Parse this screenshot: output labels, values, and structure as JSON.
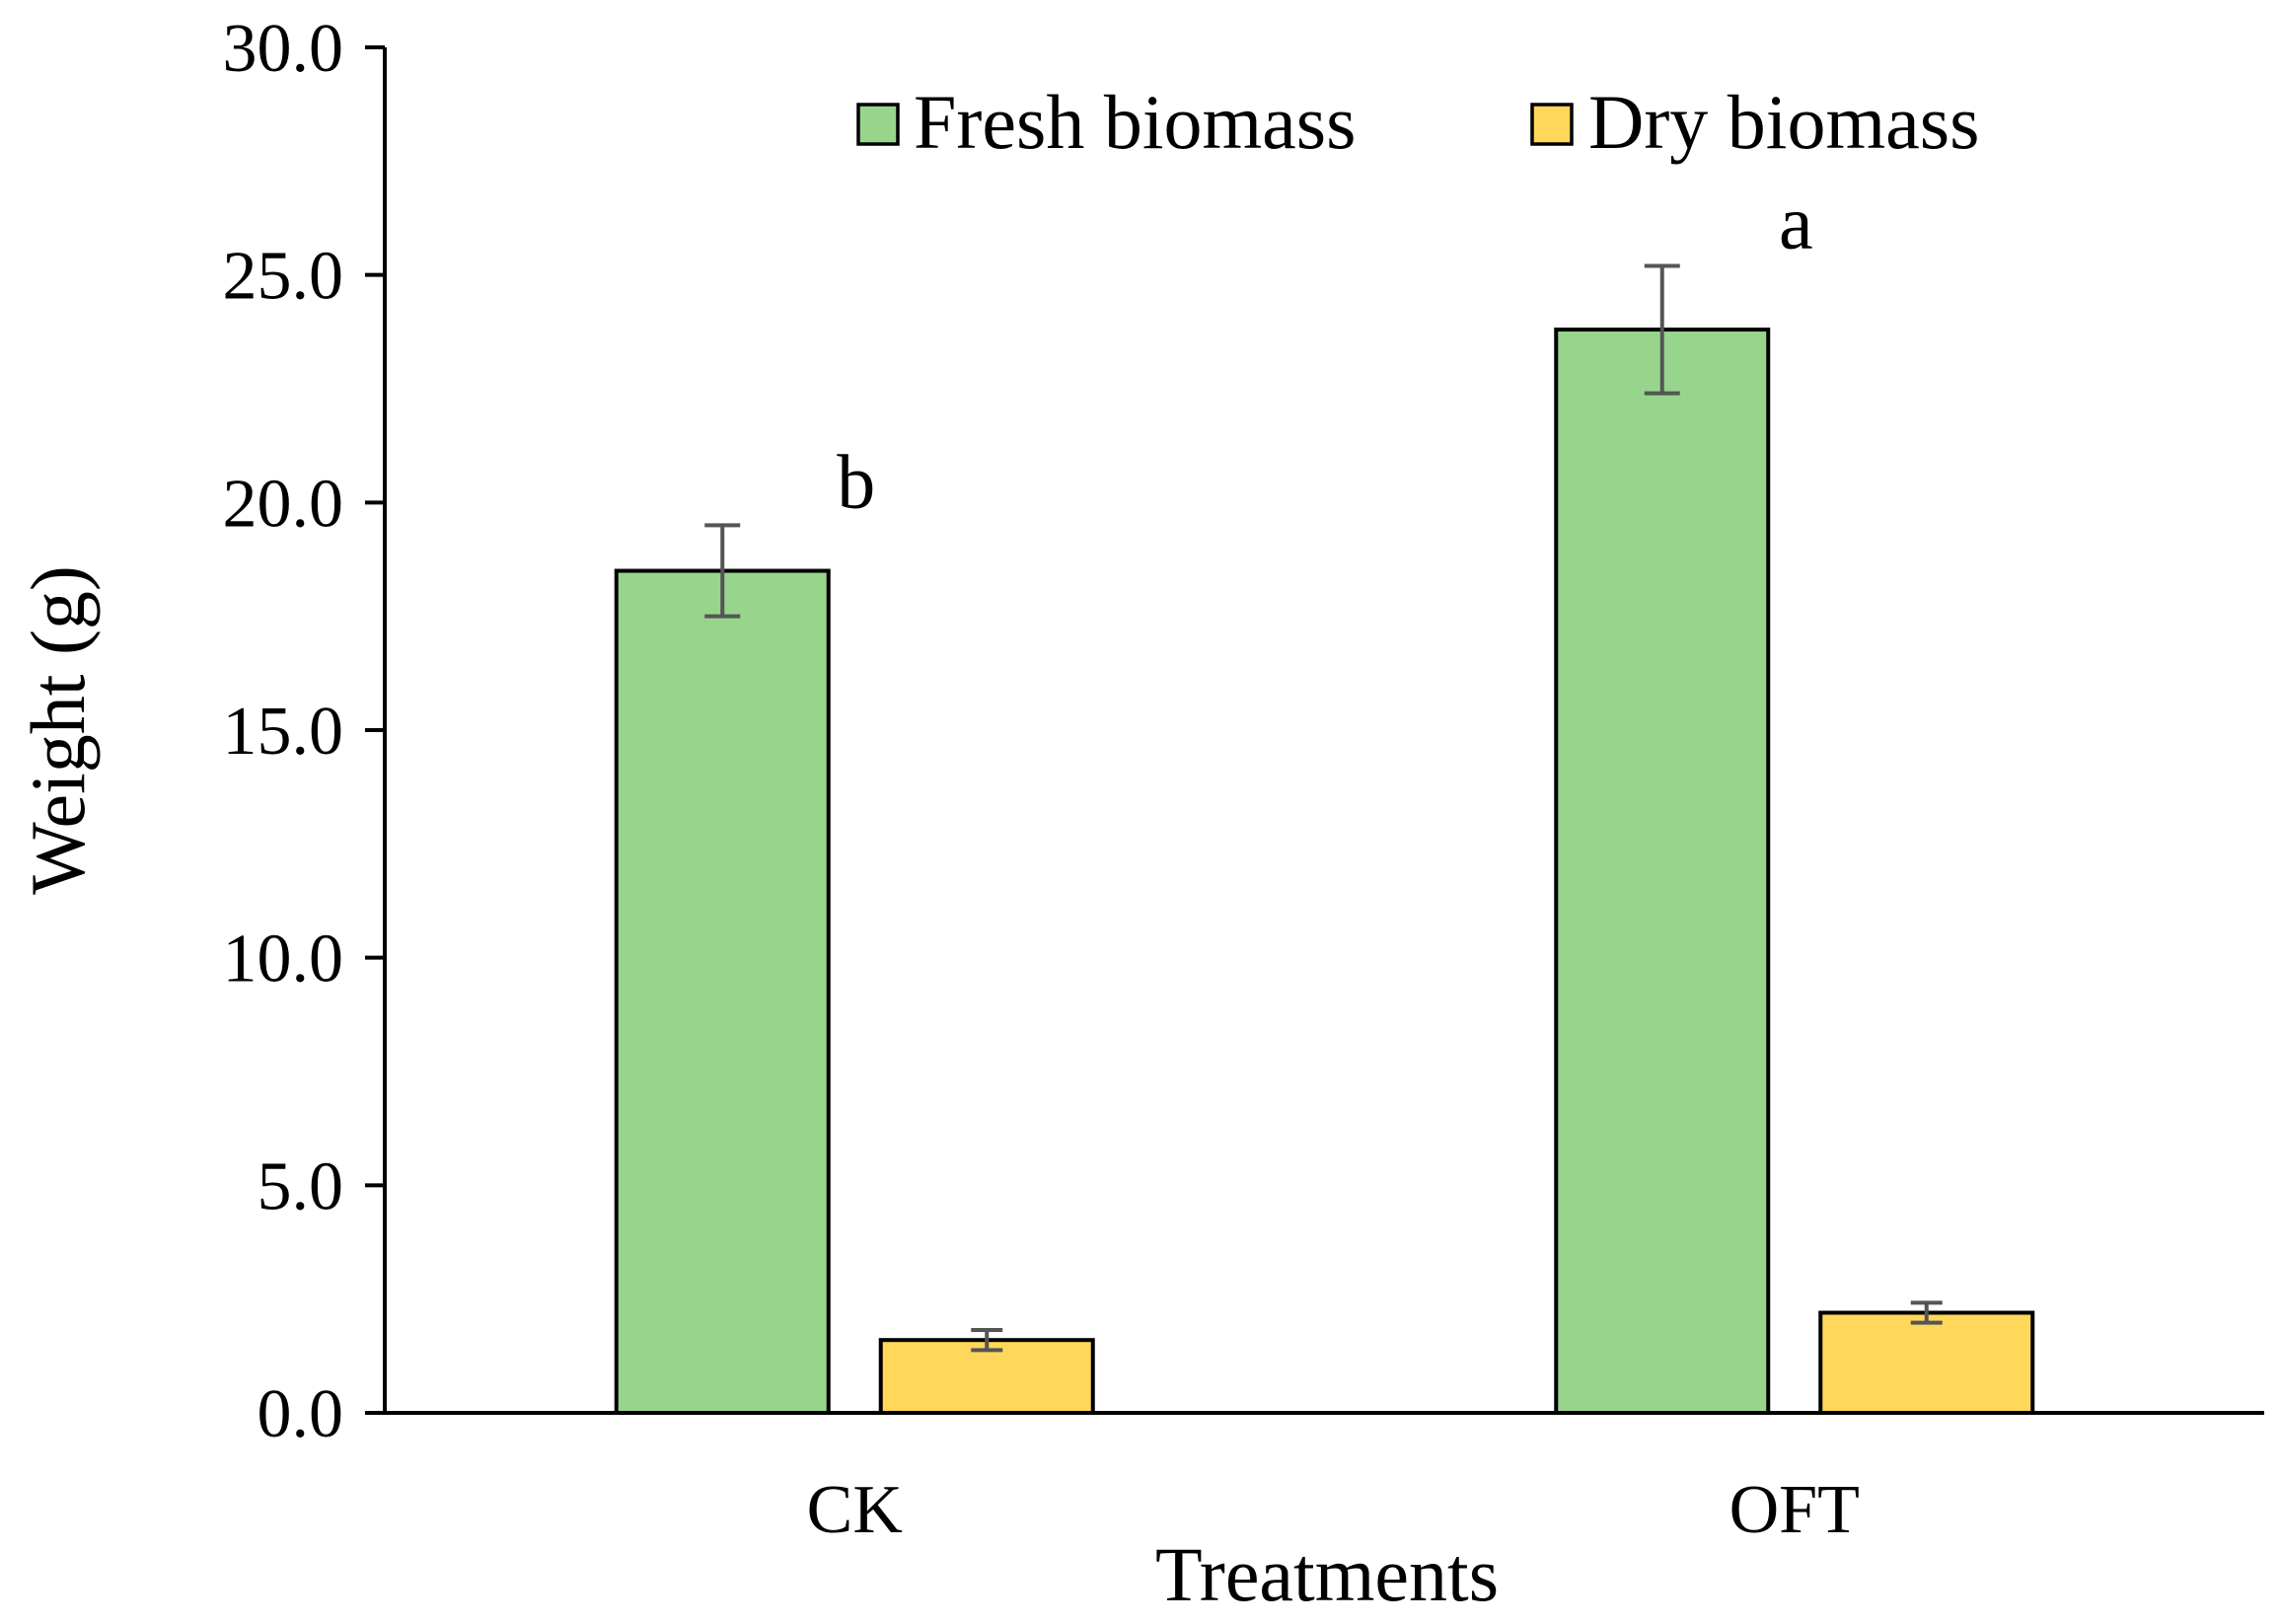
{
  "chart_data": {
    "type": "bar",
    "title": "",
    "xlabel": "Treatments",
    "ylabel": "Weight (g)",
    "ylim": [
      0,
      30
    ],
    "yticks": [
      "0.0",
      "5.0",
      "10.0",
      "15.0",
      "20.0",
      "25.0",
      "30.0"
    ],
    "ytick_values": [
      0,
      5,
      10,
      15,
      20,
      25,
      30
    ],
    "categories": [
      "CK",
      "OFT"
    ],
    "legend_position": "top-right",
    "grid": false,
    "series": [
      {
        "name": "Fresh biomass",
        "color": "#97d58c",
        "values": [
          18.5,
          23.8
        ],
        "errors": [
          1.0,
          1.4
        ],
        "labels": [
          "b",
          "a"
        ]
      },
      {
        "name": "Dry biomass",
        "color": "#ffd75a",
        "values": [
          1.6,
          2.2
        ],
        "errors": [
          0.22,
          0.22
        ],
        "labels": [
          "",
          ""
        ]
      }
    ]
  }
}
